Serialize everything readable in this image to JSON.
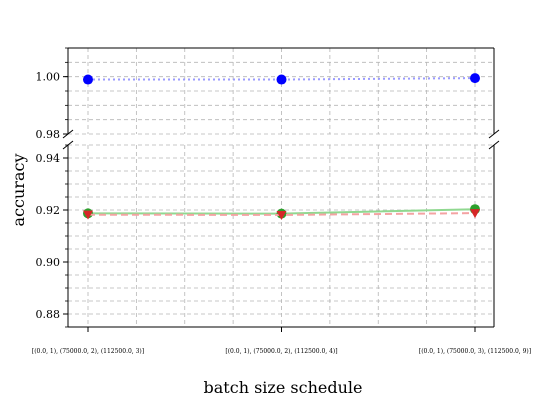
{
  "chart_data": {
    "type": "line",
    "title": "",
    "xlabel": "batch size schedule",
    "ylabel": "accuracy",
    "categories": [
      "[(0.0, 1), (75000.0, 2), (112500.0, 3)]",
      "[(0.0, 1), (75000.0, 2), (112500.0, 4)]",
      "[(0.0, 1), (75000.0, 3), (112500.0, 9)]"
    ],
    "broken_y_axis": true,
    "upper_panel": {
      "ylim": [
        0.98,
        1.01
      ],
      "yticks": [
        "0.98",
        "1.00"
      ],
      "ytick_values": [
        0.98,
        1.0
      ]
    },
    "lower_panel": {
      "ylim": [
        0.875,
        0.945
      ],
      "yticks": [
        "0.88",
        "0.90",
        "0.92",
        "0.94"
      ],
      "ytick_values": [
        0.88,
        0.9,
        0.92,
        0.94
      ]
    },
    "grid": true,
    "series": [
      {
        "color": "#0000ff",
        "marker": "circle",
        "line_style": "dotted",
        "values": [
          0.999,
          0.999,
          0.9995
        ]
      },
      {
        "color": "#2ca02c",
        "marker": "circle",
        "line_style": "solid",
        "values": [
          0.9187,
          0.9186,
          0.9203
        ]
      },
      {
        "color": "#d62728",
        "marker": "down-triangle",
        "line_style": "dashed",
        "values": [
          0.9182,
          0.9181,
          0.9188
        ]
      }
    ]
  }
}
